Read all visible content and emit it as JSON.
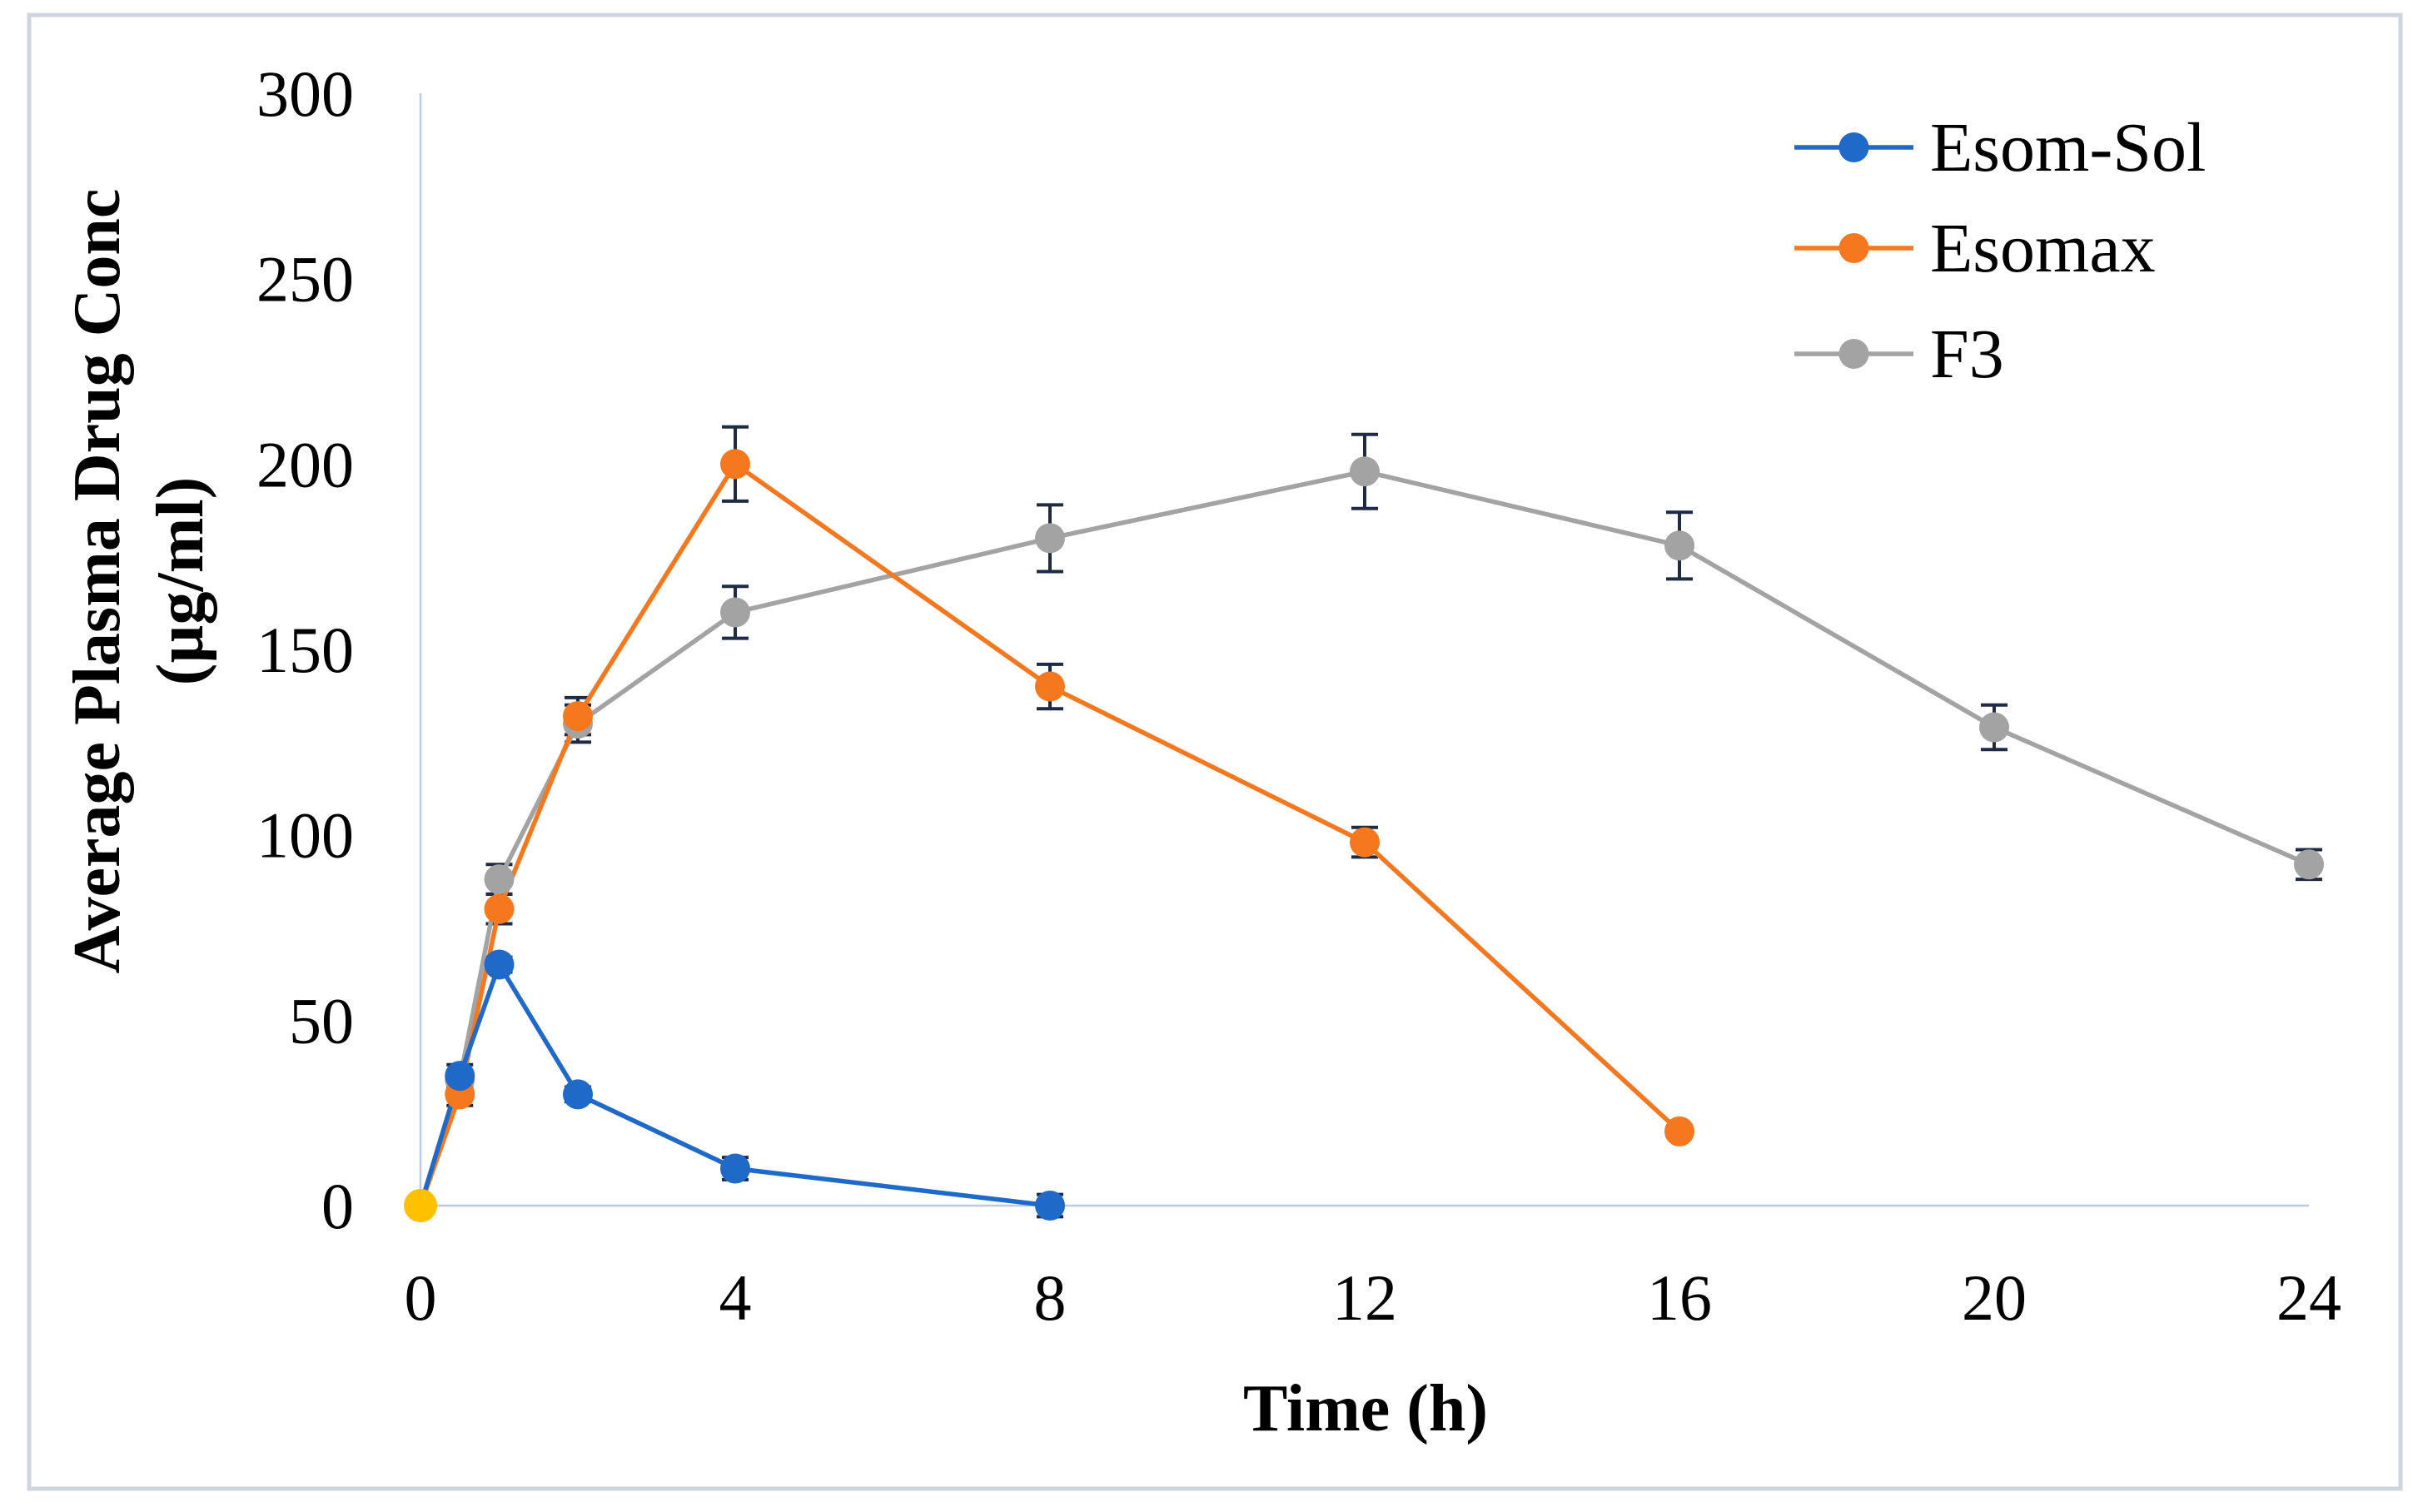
{
  "chart_data": {
    "type": "line",
    "title": "",
    "xlabel": "Time (h)",
    "ylabel": [
      "Average Plasma Drug Conc",
      "(µg/ml)"
    ],
    "xlim": [
      0,
      24
    ],
    "ylim": [
      0,
      300
    ],
    "xticks": [
      0,
      4,
      8,
      12,
      16,
      20,
      24
    ],
    "yticks": [
      0,
      50,
      100,
      150,
      200,
      250,
      300
    ],
    "grid": false,
    "legend_position": "top-right",
    "series": [
      {
        "name": "Esom-Sol",
        "color": "#1F6AC9",
        "x": [
          0,
          0.5,
          1,
          2,
          4,
          8
        ],
        "y": [
          0,
          35,
          65,
          30,
          10,
          0
        ],
        "error": [
          0,
          3,
          2,
          2,
          3,
          3
        ]
      },
      {
        "name": "Esomax",
        "color": "#F5781E",
        "x": [
          0,
          0.5,
          1,
          2,
          4,
          8,
          12,
          16
        ],
        "y": [
          0,
          30,
          80,
          132,
          200,
          140,
          98,
          20
        ],
        "error": [
          0,
          3,
          4,
          5,
          10,
          6,
          4,
          0
        ]
      },
      {
        "name": "F3",
        "color": "#A3A3A3",
        "x": [
          0,
          0.5,
          1,
          2,
          4,
          8,
          12,
          16,
          20,
          24
        ],
        "y": [
          0,
          34,
          88,
          130,
          160,
          180,
          198,
          178,
          129,
          92
        ],
        "error": [
          0,
          2,
          4,
          5,
          7,
          9,
          10,
          9,
          6,
          4
        ]
      }
    ],
    "origin_marker_color": "#FFC000"
  }
}
